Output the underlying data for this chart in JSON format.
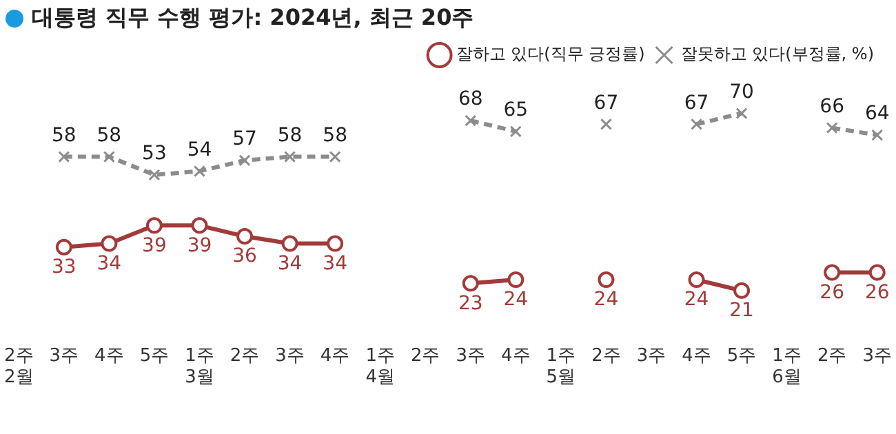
{
  "chart_data": {
    "type": "line",
    "title": "대통령 직무 수행 평가: 2024년, 최근 20주",
    "categories": [
      "2주\n2월",
      "3주",
      "4주",
      "5주",
      "1주\n3월",
      "2주",
      "3주",
      "4주",
      "1주\n4월",
      "2주",
      "3주",
      "4주",
      "1주\n5월",
      "2주",
      "3주",
      "4주",
      "5주",
      "1주\n6월",
      "2주",
      "3주"
    ],
    "series": [
      {
        "name": "잘하고 있다(직무 긍정률)",
        "color": "#a33a3a",
        "marker": "circle",
        "line_style": "solid",
        "values": [
          null,
          33,
          34,
          39,
          39,
          36,
          34,
          34,
          null,
          null,
          23,
          24,
          null,
          24,
          null,
          24,
          21,
          null,
          26,
          26
        ]
      },
      {
        "name": "잘못하고 있다(부정률, %)",
        "color": "#8c8c8c",
        "marker": "cross",
        "line_style": "dashed",
        "values": [
          null,
          58,
          58,
          53,
          54,
          57,
          58,
          58,
          null,
          null,
          68,
          65,
          null,
          67,
          null,
          67,
          70,
          null,
          66,
          64
        ]
      }
    ],
    "tick_labels": "x",
    "grid": false,
    "legend": "top right",
    "data_labels": true
  }
}
